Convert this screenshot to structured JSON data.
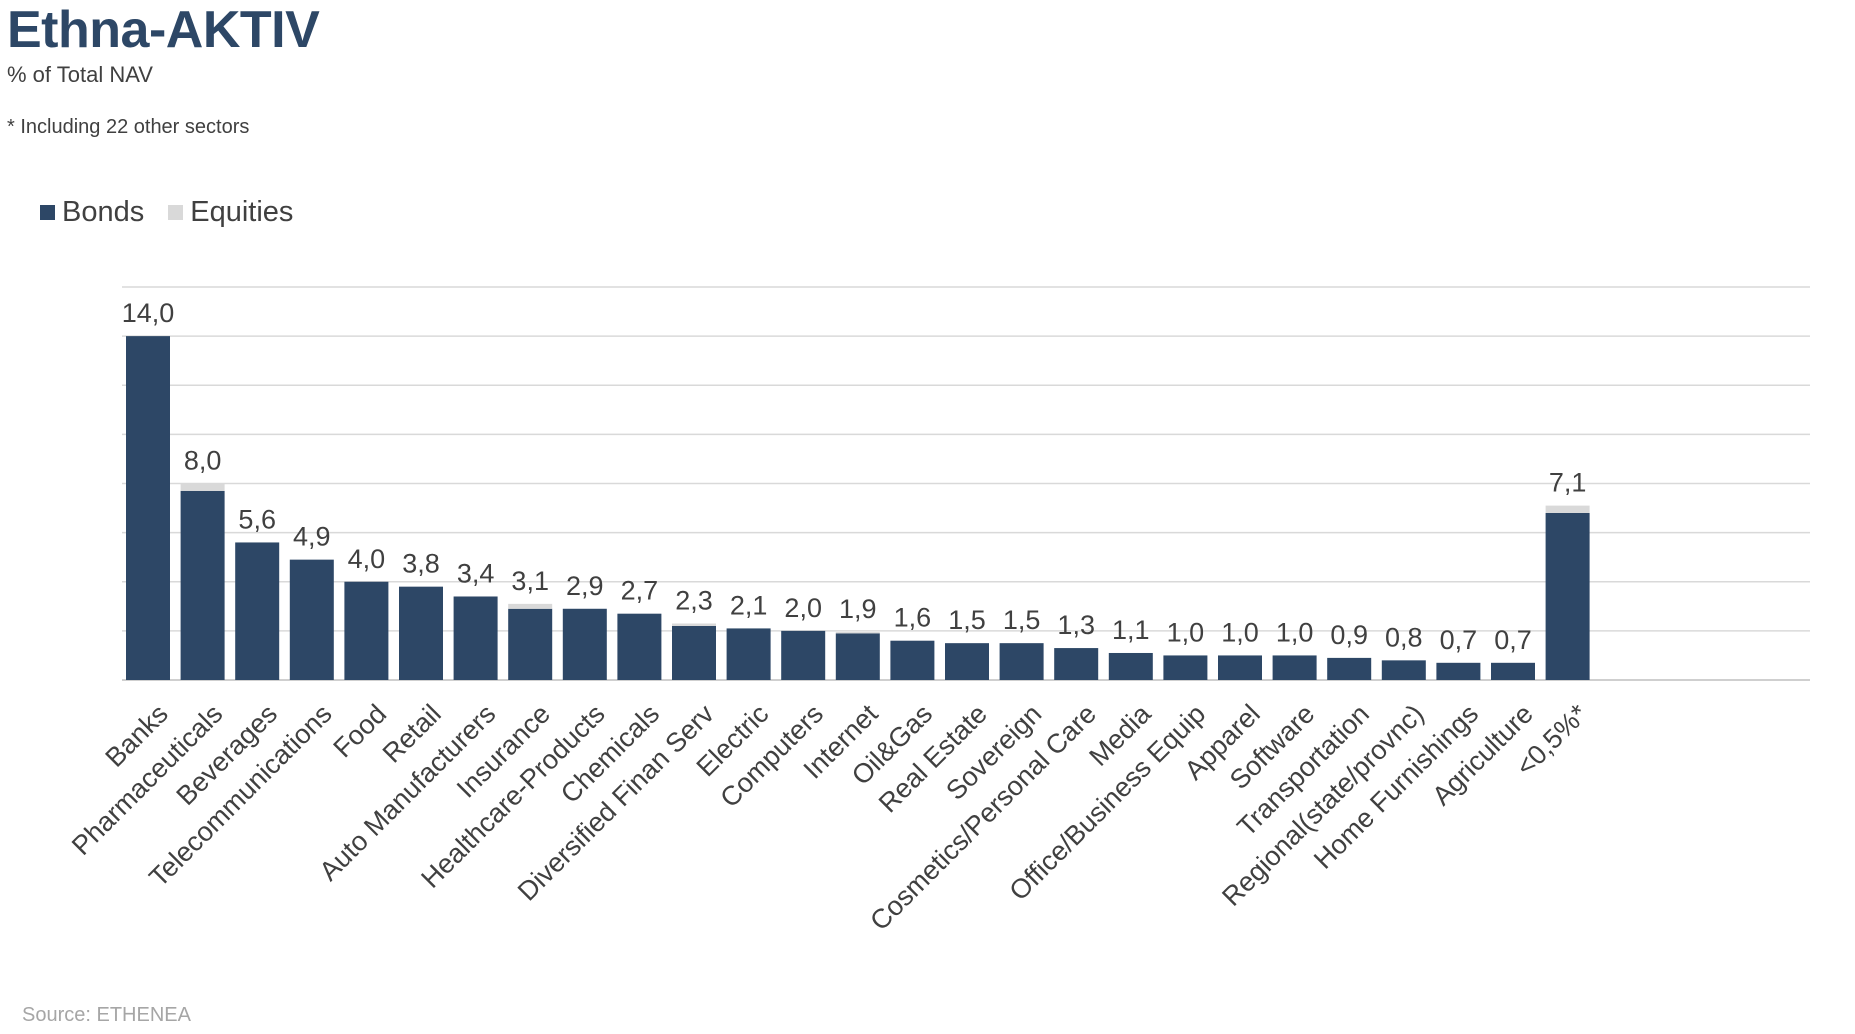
{
  "header": {
    "title": "Ethna-AKTIV",
    "subtitle": "% of Total NAV",
    "note": "* Including 22 other sectors"
  },
  "source": "Source: ETHENEA",
  "colors": {
    "bonds": "#2d4766",
    "equities": "#d9d9d9",
    "grid": "#d9d9d9",
    "axis": "#bfbfbf"
  },
  "chart_data": {
    "type": "bar",
    "stacked": true,
    "legend_position": "top-left",
    "grid": true,
    "ylim": [
      0,
      16
    ],
    "categories": [
      "Banks",
      "Pharmaceuticals",
      "Beverages",
      "Telecommunications",
      "Food",
      "Retail",
      "Auto Manufacturers",
      "Insurance",
      "Healthcare-Products",
      "Chemicals",
      "Diversified Finan Serv",
      "Electric",
      "Computers",
      "Internet",
      "Oil&Gas",
      "Real Estate",
      "Sovereign",
      "Cosmetics/Personal Care",
      "Media",
      "Office/Business Equip",
      "Apparel",
      "Software",
      "Transportation",
      "Regional(state/provnc)",
      "Home Furnishings",
      "Agriculture",
      "<0,5%*"
    ],
    "series": [
      {
        "name": "Bonds",
        "values": [
          14.0,
          7.7,
          5.6,
          4.9,
          4.0,
          3.8,
          3.4,
          2.9,
          2.9,
          2.7,
          2.2,
          2.1,
          2.0,
          1.9,
          1.6,
          1.5,
          1.5,
          1.3,
          1.1,
          1.0,
          1.0,
          1.0,
          0.9,
          0.8,
          0.7,
          0.7,
          6.8
        ]
      },
      {
        "name": "Equities",
        "values": [
          0.0,
          0.3,
          0.0,
          0.0,
          0.0,
          0.0,
          0.0,
          0.2,
          0.0,
          0.0,
          0.1,
          0.0,
          0.0,
          0.05,
          0.0,
          0.0,
          0.0,
          0.0,
          0.0,
          0.0,
          0.0,
          0.0,
          0.0,
          0.0,
          0.0,
          0.0,
          0.3
        ]
      }
    ],
    "totals_labels": [
      "14,0",
      "8,0",
      "5,6",
      "4,9",
      "4,0",
      "3,8",
      "3,4",
      "3,1",
      "2,9",
      "2,7",
      "2,3",
      "2,1",
      "2,0",
      "1,9",
      "1,6",
      "1,5",
      "1,5",
      "1,3",
      "1,1",
      "1,0",
      "1,0",
      "1,0",
      "0,9",
      "0,8",
      "0,7",
      "0,7",
      "7,1"
    ]
  }
}
